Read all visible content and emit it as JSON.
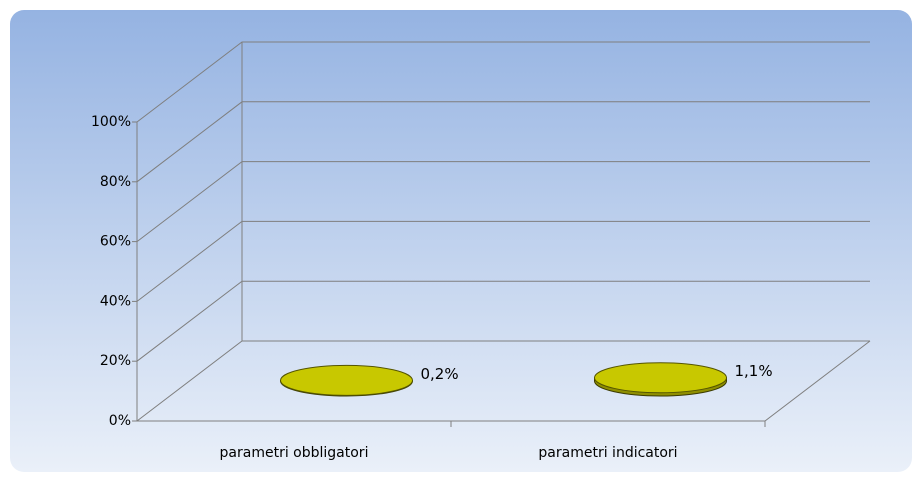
{
  "chart_data": {
    "type": "bar3d",
    "categories": [
      "parametri obbligatori",
      "parametri indicatori"
    ],
    "values": [
      0.2,
      1.1
    ],
    "value_labels": [
      "0,2%",
      "1,1%"
    ],
    "color": "#c8c800",
    "ylim": [
      0,
      100
    ],
    "yticks": [
      {
        "value": 0,
        "label": "0%"
      },
      {
        "value": 20,
        "label": "20%"
      },
      {
        "value": 40,
        "label": "40%"
      },
      {
        "value": 60,
        "label": "60%"
      },
      {
        "value": 80,
        "label": "80%"
      },
      {
        "value": 100,
        "label": "100%"
      }
    ],
    "grid": true
  }
}
